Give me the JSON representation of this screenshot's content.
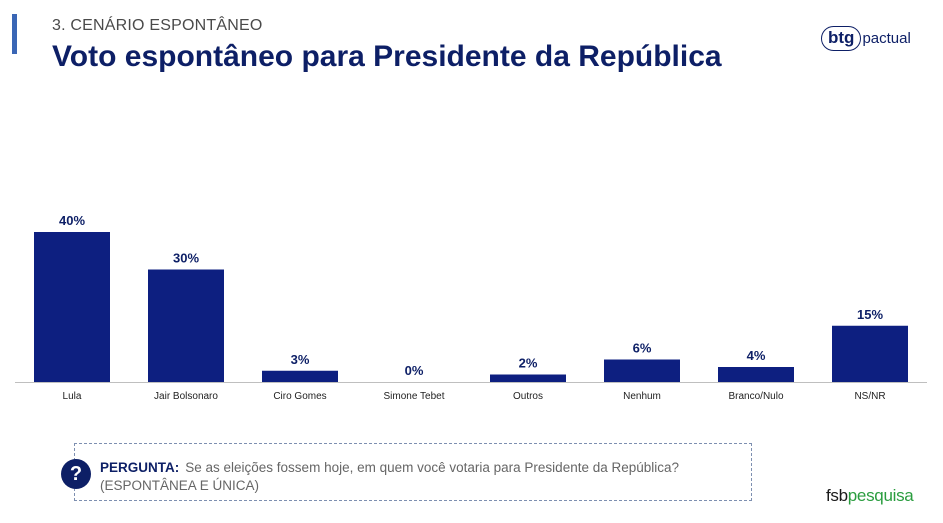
{
  "header": {
    "section_label": "3. CENÁRIO ESPONTÂNEO",
    "title": "Voto espontâneo para Presidente da República"
  },
  "brand": {
    "logo_main": "btg",
    "logo_rest": "pactual"
  },
  "question": {
    "label": "PERGUNTA:",
    "line1": "Se as eleições fossem hoje, em quem você votaria para Presidente da República?",
    "line2": "(ESPONTÂNEA E ÚNICA)"
  },
  "footer": {
    "logo_main": "fsb",
    "logo_accent": "pesquisa"
  },
  "colors": {
    "bar": "#0d1f80",
    "title": "#0d1f66",
    "accent": "#3a66b5"
  },
  "chart_data": {
    "type": "bar",
    "categories": [
      "Lula",
      "Jair Bolsonaro",
      "Ciro Gomes",
      "Simone Tebet",
      "Outros",
      "Nenhum",
      "Branco/Nulo",
      "NS/NR"
    ],
    "values": [
      40,
      30,
      3,
      0,
      2,
      6,
      4,
      15
    ],
    "value_labels": [
      "40%",
      "30%",
      "3%",
      "0%",
      "2%",
      "6%",
      "4%",
      "15%"
    ],
    "unit": "%",
    "ylim": [
      0,
      40
    ],
    "grid": false,
    "legend": "none"
  }
}
